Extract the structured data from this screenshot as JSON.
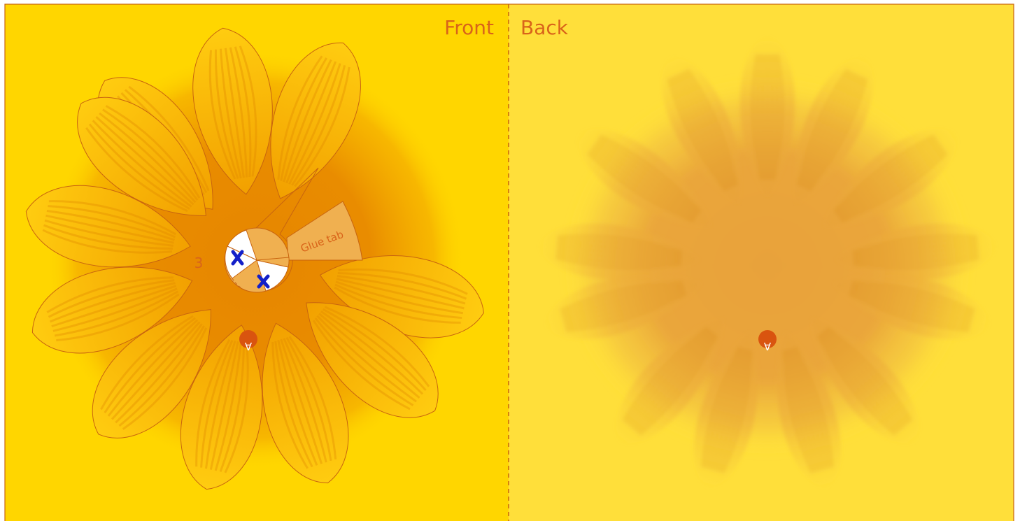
{
  "labels": {
    "front": "Front",
    "back": "Back",
    "piece_number": "3",
    "glue_tab": "Glue tab",
    "orientation_mark": "A"
  },
  "colors": {
    "front_bg": "#ffd600",
    "back_bg": "#ffdf3a",
    "frame": "#c8640f",
    "petal_fill": "#f5a500",
    "center_dark": "#e58a00",
    "back_center": "#e8a23a",
    "glue_tab_fill": "#f0b050",
    "orientation_dot": "#d9540f",
    "x_mark": "#1420c8"
  },
  "icons": {
    "cut_mark": "x-mark-icon",
    "orientation": "upside-down-a-icon"
  }
}
